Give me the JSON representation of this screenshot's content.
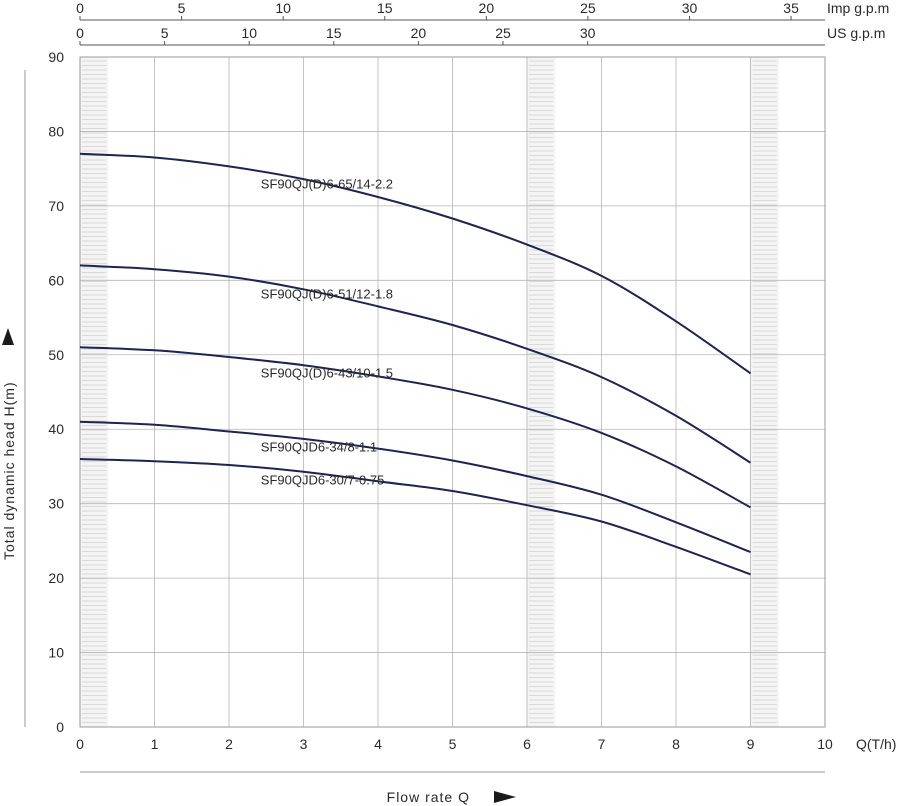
{
  "chart_data": {
    "type": "line",
    "xlabel": "Flow rate Q",
    "x_unit": "Q(T/h)",
    "ylabel": "Total dynamic head H(m)",
    "xlim": [
      0,
      10
    ],
    "ylim": [
      0,
      90
    ],
    "x_ticks": [
      "0",
      "1",
      "2",
      "3",
      "4",
      "5",
      "6",
      "7",
      "8",
      "9",
      "10"
    ],
    "y_ticks": [
      "0",
      "10",
      "20",
      "30",
      "40",
      "50",
      "60",
      "70",
      "80",
      "90"
    ],
    "top_axes": [
      {
        "unit": "Imp g.p.m",
        "ticks": [
          "0",
          "5",
          "10",
          "15",
          "20",
          "25",
          "30",
          "35"
        ],
        "values": [
          0,
          5,
          10,
          15,
          20,
          25,
          30,
          35
        ],
        "max_at_q": 10,
        "max_value": 36.67
      },
      {
        "unit": "US g.p.m",
        "ticks": [
          "0",
          "5",
          "10",
          "15",
          "20",
          "25",
          "30"
        ],
        "values": [
          0,
          5,
          10,
          15,
          20,
          25,
          30
        ],
        "max_at_q": 10,
        "max_value": 44.03
      }
    ],
    "grid": true,
    "shaded_columns": [
      0,
      6,
      9
    ],
    "line_color": "#1c2452",
    "series": [
      {
        "name": "SF90QJ(D)6-65/14-2.2",
        "x": [
          0,
          1,
          2,
          3,
          4,
          5,
          6,
          7,
          8,
          9
        ],
        "y": [
          77,
          76.5,
          75.3,
          73.6,
          71.2,
          68.3,
          64.8,
          60.6,
          54.5,
          47.5
        ]
      },
      {
        "name": "SF90QJ(D)6-51/12-1.8",
        "x": [
          0,
          1,
          2,
          3,
          4,
          5,
          6,
          7,
          8,
          9
        ],
        "y": [
          62,
          61.5,
          60.5,
          58.8,
          56.5,
          54,
          50.8,
          47,
          41.8,
          35.5
        ]
      },
      {
        "name": "SF90QJ(D)6-43/10-1.5",
        "x": [
          0,
          1,
          2,
          3,
          4,
          5,
          6,
          7,
          8,
          9
        ],
        "y": [
          51,
          50.6,
          49.7,
          48.6,
          47.1,
          45.3,
          42.8,
          39.5,
          35,
          29.5
        ]
      },
      {
        "name": "SF90QJD6-34/8-1.1",
        "x": [
          0,
          1,
          2,
          3,
          4,
          5,
          6,
          7,
          8,
          9
        ],
        "y": [
          41,
          40.6,
          39.7,
          38.7,
          37.4,
          35.8,
          33.7,
          31.2,
          27.5,
          23.5
        ]
      },
      {
        "name": "SF90QJD6-30/7-0.75",
        "x": [
          0,
          1,
          2,
          3,
          4,
          5,
          6,
          7,
          8,
          9
        ],
        "y": [
          36,
          35.7,
          35.2,
          34.3,
          33,
          31.7,
          29.8,
          27.6,
          24.2,
          20.5
        ]
      }
    ]
  }
}
